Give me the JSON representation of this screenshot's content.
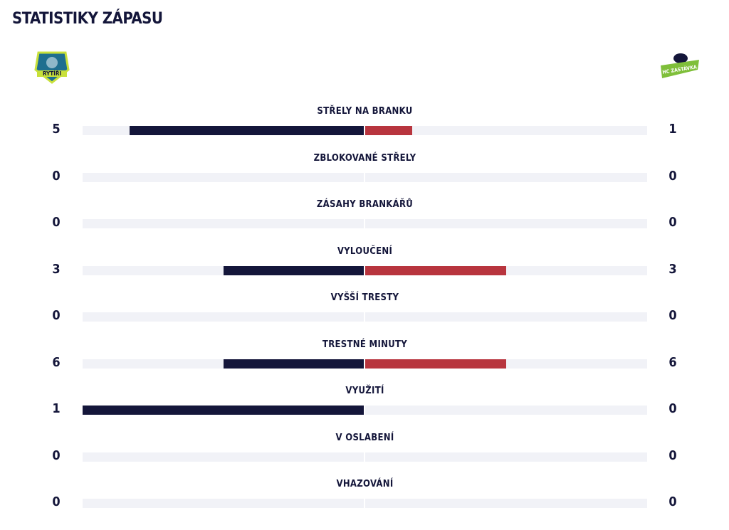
{
  "header": {
    "title": "STATISTIKY ZÁPASU"
  },
  "teams": {
    "home": {
      "logo_text": "RYTÍŘI"
    },
    "away": {
      "logo_text": "HC ZASTÁVKA"
    }
  },
  "stats": [
    {
      "label": "STŘELY NA BRANKU",
      "home": 5,
      "away": 1
    },
    {
      "label": "ZBLOKOVANÉ STŘELY",
      "home": 0,
      "away": 0
    },
    {
      "label": "ZÁSAHY BRANKÁŘŮ",
      "home": 0,
      "away": 0
    },
    {
      "label": "VYLOUČENÍ",
      "home": 3,
      "away": 3
    },
    {
      "label": "VYŠŠÍ TRESTY",
      "home": 0,
      "away": 0
    },
    {
      "label": "TRESTNÉ MINUTY",
      "home": 6,
      "away": 6
    },
    {
      "label": "VYUŽITÍ",
      "home": 1,
      "away": 0
    },
    {
      "label": "V OSLABENÍ",
      "home": 0,
      "away": 0
    },
    {
      "label": "VHAZOVÁNÍ",
      "home": 0,
      "away": 0
    }
  ]
}
